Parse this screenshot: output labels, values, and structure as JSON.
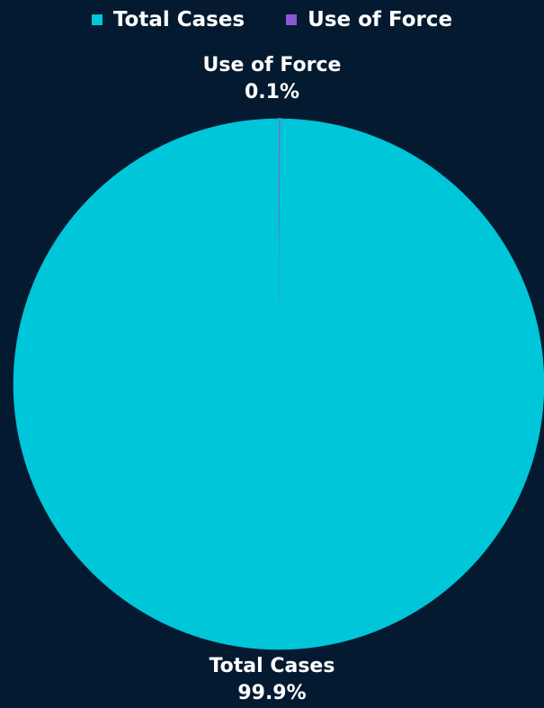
{
  "chart_data": {
    "type": "pie",
    "title": "",
    "legend_position": "top-center",
    "slices": [
      {
        "name": "Total Cases",
        "value": 99.9,
        "percent_label": "99.9%",
        "color": "#00c6d9"
      },
      {
        "name": "Use of Force",
        "value": 0.1,
        "percent_label": "0.1%",
        "color": "#8e57d6"
      }
    ]
  },
  "colors": {
    "background": "#041a30",
    "text": "#ffffff"
  }
}
